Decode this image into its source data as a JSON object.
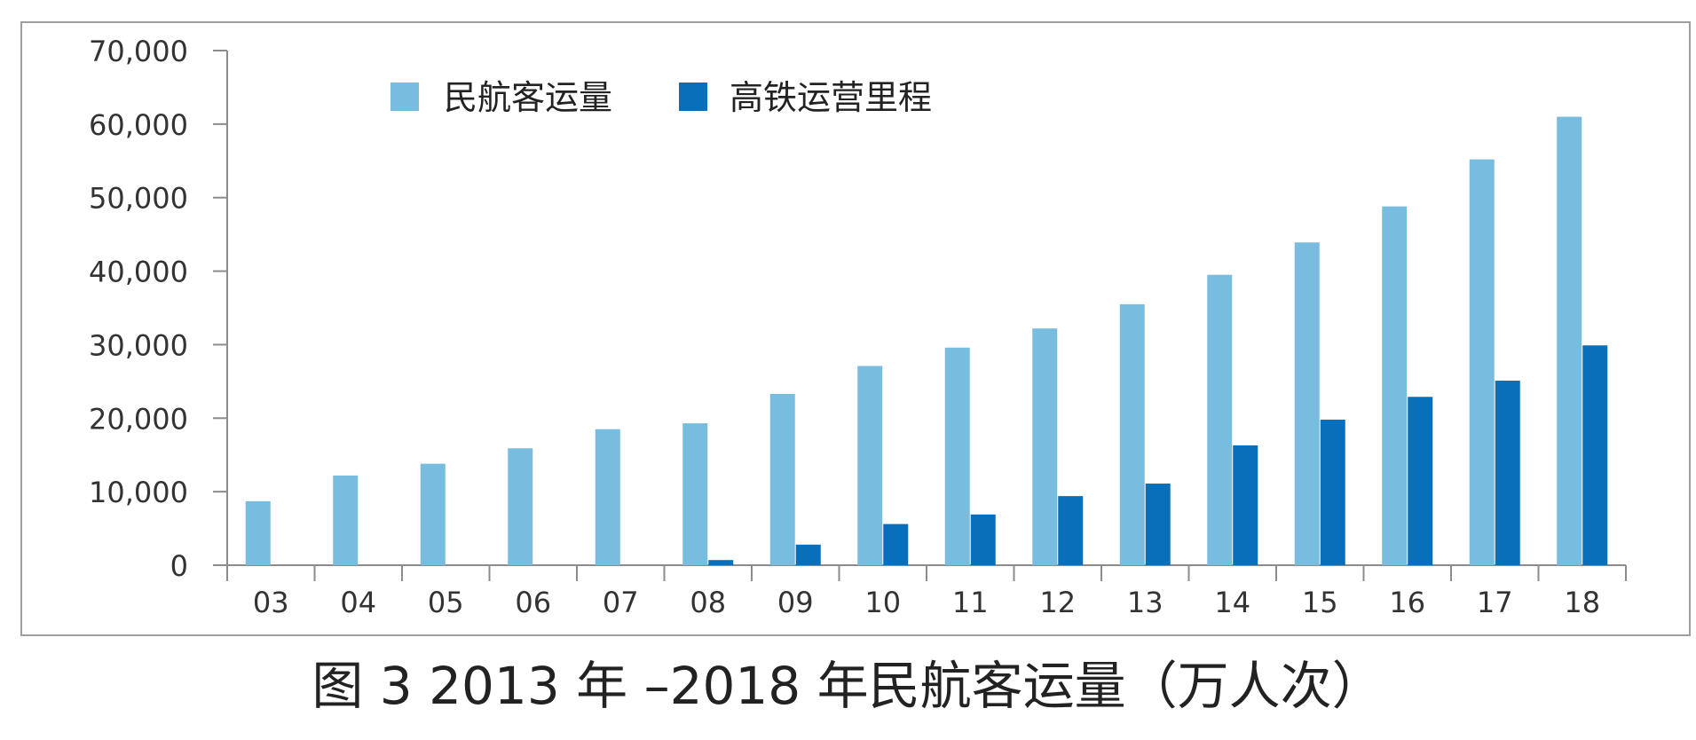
{
  "caption": "图 3  2013 年 –2018 年民航客运量（万人次）",
  "chart_data": {
    "type": "bar",
    "categories": [
      "03",
      "04",
      "05",
      "06",
      "07",
      "08",
      "09",
      "10",
      "11",
      "12",
      "13",
      "14",
      "15",
      "16",
      "17",
      "18"
    ],
    "series": [
      {
        "name": "民航客运量",
        "color": "#78bce0",
        "values": [
          8700,
          12200,
          13800,
          15900,
          18500,
          19300,
          23300,
          27100,
          29600,
          32200,
          35500,
          39500,
          43900,
          48800,
          55200,
          61000
        ]
      },
      {
        "name": "高铁运营里程",
        "color": "#0a6fba",
        "values": [
          0,
          0,
          0,
          0,
          0,
          700,
          2800,
          5600,
          6900,
          9400,
          11100,
          16300,
          19800,
          22900,
          25100,
          29900
        ]
      }
    ],
    "yticks": [
      "0",
      "10,000",
      "20,000",
      "30,000",
      "40,000",
      "50,000",
      "60,000",
      "70,000"
    ],
    "ylim": [
      0,
      70000
    ],
    "xlabel": "",
    "ylabel": "",
    "grid": false,
    "legend_position": "top-left"
  },
  "frame_color": "#9e9e9e",
  "axis_color": "#8c8c8c"
}
